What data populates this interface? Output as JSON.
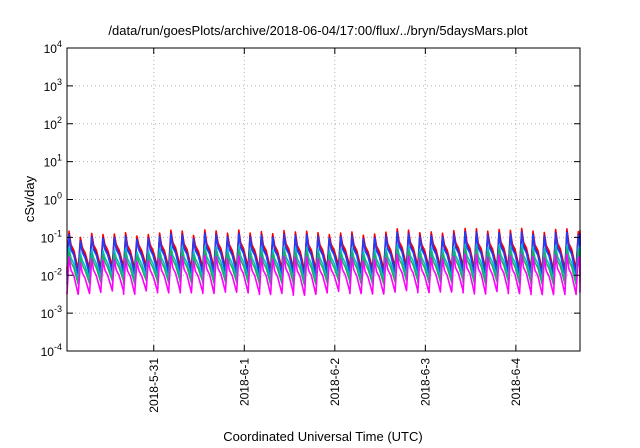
{
  "chart_data": {
    "type": "line",
    "title": "/data/run/goesPlots/archive/2018-06-04/17:00/flux/../bryn/5daysMars.plot",
    "xlabel": "Coordinated Universal Time (UTC)",
    "ylabel": "cSv/day",
    "yscale": "log",
    "ylim": [
      0.0001,
      10000
    ],
    "y_ticks": [
      {
        "base": "10",
        "exp": "-4"
      },
      {
        "base": "10",
        "exp": "-3"
      },
      {
        "base": "10",
        "exp": "-2"
      },
      {
        "base": "10",
        "exp": "-1"
      },
      {
        "base": "10",
        "exp": "0"
      },
      {
        "base": "10",
        "exp": "1"
      },
      {
        "base": "10",
        "exp": "2"
      },
      {
        "base": "10",
        "exp": "3"
      },
      {
        "base": "10",
        "exp": "4"
      }
    ],
    "xlim": [
      "2018-05-30 01:00",
      "2018-06-04 17:00"
    ],
    "x_ticks": [
      "2018-5-31",
      "2018-6-1",
      "2018-6-2",
      "2018-6-3",
      "2018-6-4"
    ],
    "grid": true,
    "series": [
      {
        "color": "#ff0000",
        "peak": 0.12,
        "trough": 0.016
      },
      {
        "color": "#800080",
        "peak": 0.1,
        "trough": 0.013
      },
      {
        "color": "#1f3fff",
        "peak": 0.095,
        "trough": 0.011
      },
      {
        "color": "#00bfbf",
        "peak": 0.045,
        "trough": 0.0085
      },
      {
        "color": "#1faf5f",
        "peak": 0.035,
        "trough": 0.0065
      },
      {
        "color": "#ff00ff",
        "peak": 0.025,
        "trough": 0.0035
      }
    ],
    "cycles_per_day": 8
  }
}
